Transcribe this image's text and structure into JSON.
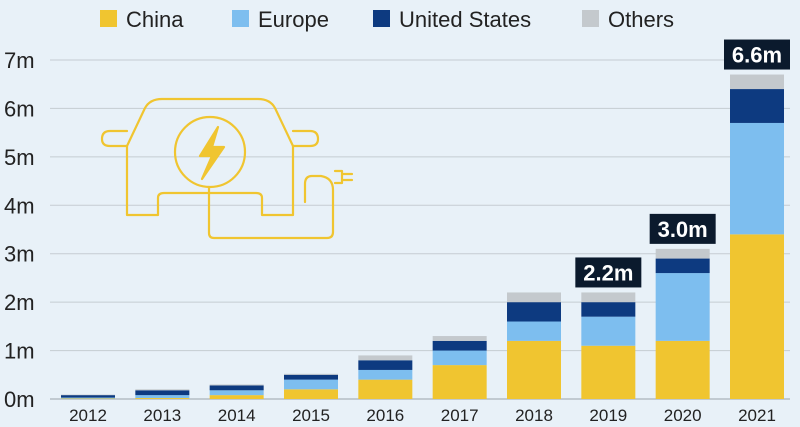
{
  "chart_data": {
    "type": "bar",
    "stacked": true,
    "categories": [
      "2012",
      "2013",
      "2014",
      "2015",
      "2016",
      "2017",
      "2018",
      "2019",
      "2020",
      "2021"
    ],
    "series": [
      {
        "name": "China",
        "color": "#f0c530",
        "values": [
          0.01,
          0.02,
          0.08,
          0.2,
          0.4,
          0.7,
          1.2,
          1.1,
          1.2,
          3.4
        ]
      },
      {
        "name": "Europe",
        "color": "#7dbeef",
        "values": [
          0.02,
          0.06,
          0.1,
          0.2,
          0.2,
          0.3,
          0.4,
          0.6,
          1.4,
          2.3
        ]
      },
      {
        "name": "United States",
        "color": "#0d3a80",
        "values": [
          0.05,
          0.1,
          0.1,
          0.1,
          0.2,
          0.2,
          0.4,
          0.3,
          0.3,
          0.7
        ]
      },
      {
        "name": "Others",
        "color": "#c4c9cd",
        "values": [
          0.01,
          0.02,
          0.02,
          0.02,
          0.1,
          0.1,
          0.2,
          0.2,
          0.2,
          0.3
        ]
      }
    ],
    "totals": [
      {
        "category": "2019",
        "label": "2.2m"
      },
      {
        "category": "2020",
        "label": "3.0m"
      },
      {
        "category": "2021",
        "label": "6.6m"
      }
    ],
    "ylim": [
      0,
      7
    ],
    "yticks": [
      0,
      1,
      2,
      3,
      4,
      5,
      6,
      7
    ],
    "ytick_labels": [
      "0m",
      "1m",
      "2m",
      "3m",
      "4m",
      "5m",
      "6m",
      "7m"
    ],
    "grid": true,
    "legend_position": "top",
    "title": "",
    "xlabel": "",
    "ylabel": ""
  },
  "decoration": {
    "icon": "electric-car-plug-icon",
    "color": "#f0c530"
  }
}
